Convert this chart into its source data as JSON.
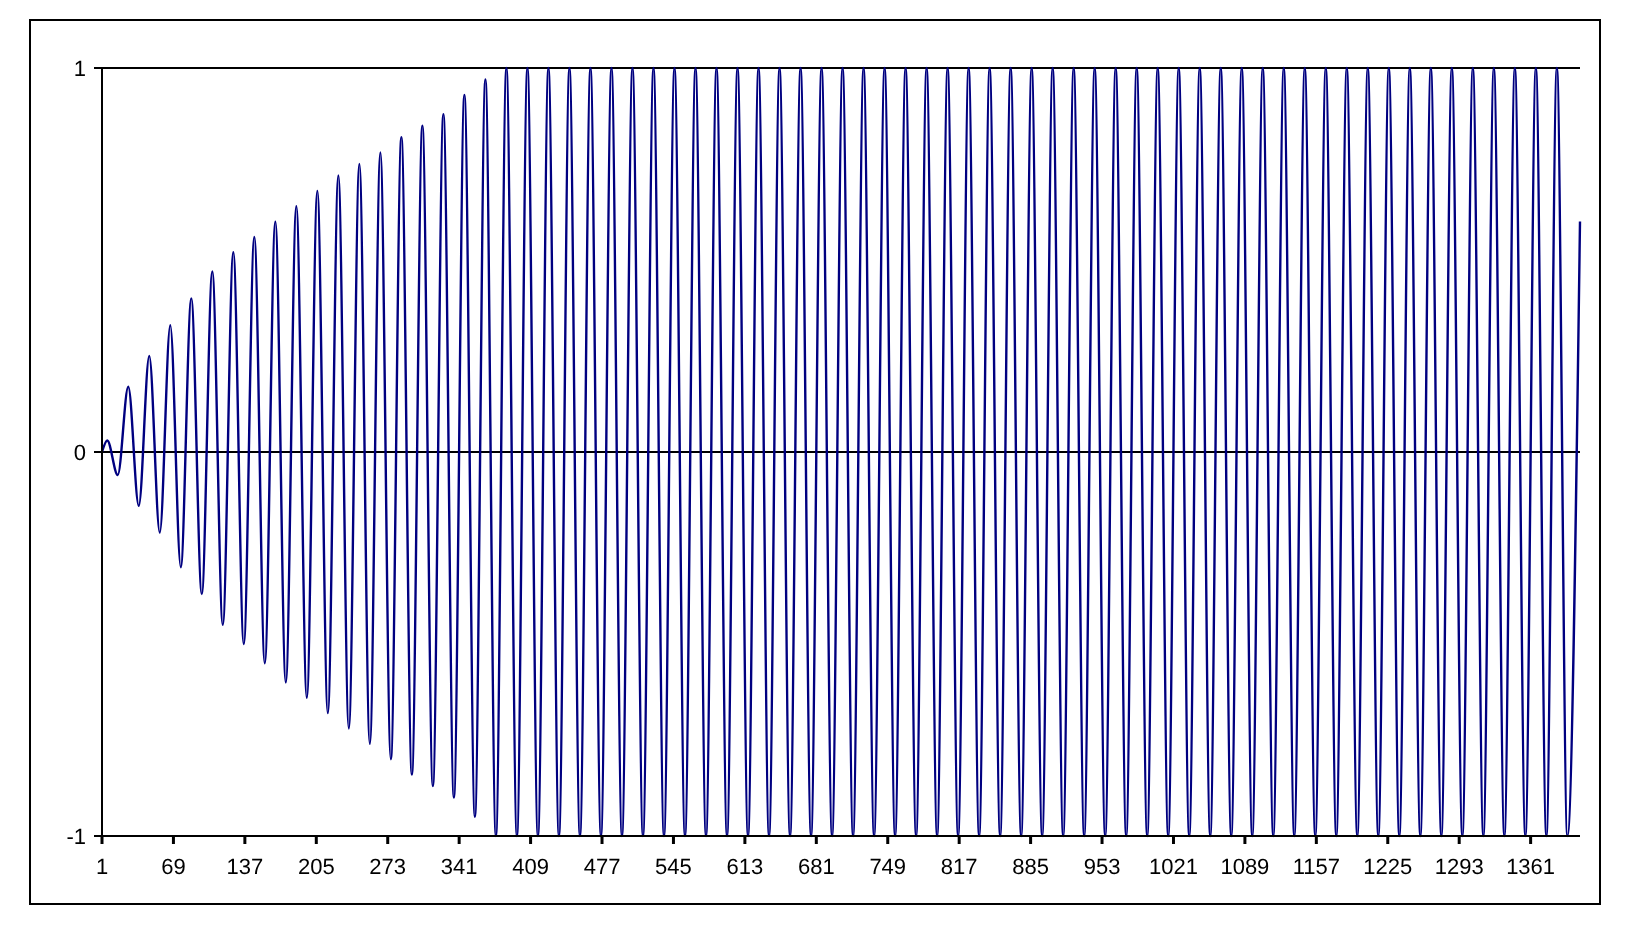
{
  "chart_data": {
    "type": "line",
    "grid": "y",
    "marker": "none",
    "line_style": "solid",
    "xlim": [
      1,
      1408
    ],
    "xticks": [
      1,
      69,
      137,
      205,
      273,
      341,
      409,
      477,
      545,
      613,
      681,
      749,
      817,
      885,
      953,
      1021,
      1089,
      1157,
      1225,
      1293,
      1361
    ],
    "ylim": [
      -1,
      1
    ],
    "yticks": [
      -1,
      0,
      1
    ],
    "series": [
      {
        "color": "#000080",
        "x": [
          1,
          6,
          16,
          26,
          36,
          46,
          56,
          66,
          76,
          86,
          96,
          106,
          116,
          126,
          136,
          146,
          156,
          166,
          176,
          186,
          196,
          206,
          216,
          226,
          236,
          246,
          256,
          266,
          276,
          286,
          296,
          306,
          316,
          326,
          336,
          346,
          356,
          366,
          376,
          386,
          396,
          406,
          416,
          426,
          436,
          446,
          456,
          466,
          476,
          486,
          496,
          506,
          516,
          526,
          536,
          546,
          556,
          566,
          576,
          586,
          596,
          606,
          616,
          626,
          636,
          646,
          656,
          666,
          676,
          686,
          696,
          706,
          716,
          726,
          736,
          746,
          756,
          766,
          776,
          786,
          796,
          806,
          816,
          826,
          836,
          846,
          856,
          866,
          876,
          886,
          896,
          906,
          916,
          926,
          936,
          946,
          956,
          966,
          976,
          986,
          996,
          1006,
          1016,
          1026,
          1036,
          1046,
          1056,
          1066,
          1076,
          1086,
          1096,
          1106,
          1116,
          1126,
          1136,
          1146,
          1156,
          1166,
          1176,
          1186,
          1196,
          1206,
          1216,
          1226,
          1236,
          1246,
          1256,
          1266,
          1276,
          1286,
          1296,
          1306,
          1316,
          1326,
          1336,
          1346,
          1356,
          1366,
          1376,
          1386,
          1396,
          1408
        ],
        "values": [
          0,
          0.03,
          -0.06,
          0.17,
          -0.14,
          0.25,
          -0.21,
          0.33,
          -0.3,
          0.4,
          -0.37,
          0.47,
          -0.45,
          0.52,
          -0.5,
          0.56,
          -0.55,
          0.6,
          -0.6,
          0.64,
          -0.64,
          0.68,
          -0.68,
          0.72,
          -0.72,
          0.75,
          -0.76,
          0.78,
          -0.8,
          0.82,
          -0.84,
          0.85,
          -0.87,
          0.88,
          -0.9,
          0.93,
          -0.95,
          0.97,
          -1,
          1,
          -1,
          1,
          -1,
          1,
          -1,
          1,
          -1,
          1,
          -1,
          1,
          -1,
          1,
          -1,
          1,
          -1,
          1,
          -1,
          1,
          -1,
          1,
          -1,
          1,
          -1,
          1,
          -1,
          1,
          -1,
          1,
          -1,
          1,
          -1,
          1,
          -1,
          1,
          -1,
          1,
          -1,
          1,
          -1,
          1,
          -1,
          1,
          -1,
          1,
          -1,
          1,
          -1,
          1,
          -1,
          1,
          -1,
          1,
          -1,
          1,
          -1,
          1,
          -1,
          1,
          -1,
          1,
          -1,
          1,
          -1,
          1,
          -1,
          1,
          -1,
          1,
          -1,
          1,
          -1,
          1,
          -1,
          1,
          -1,
          1,
          -1,
          1,
          -1,
          1,
          -1,
          1,
          -1,
          1,
          -1,
          1,
          -1,
          1,
          -1,
          1,
          -1,
          1,
          -1,
          1,
          -1,
          1,
          -1,
          1,
          -1,
          1,
          -1,
          0.6
        ]
      }
    ]
  }
}
